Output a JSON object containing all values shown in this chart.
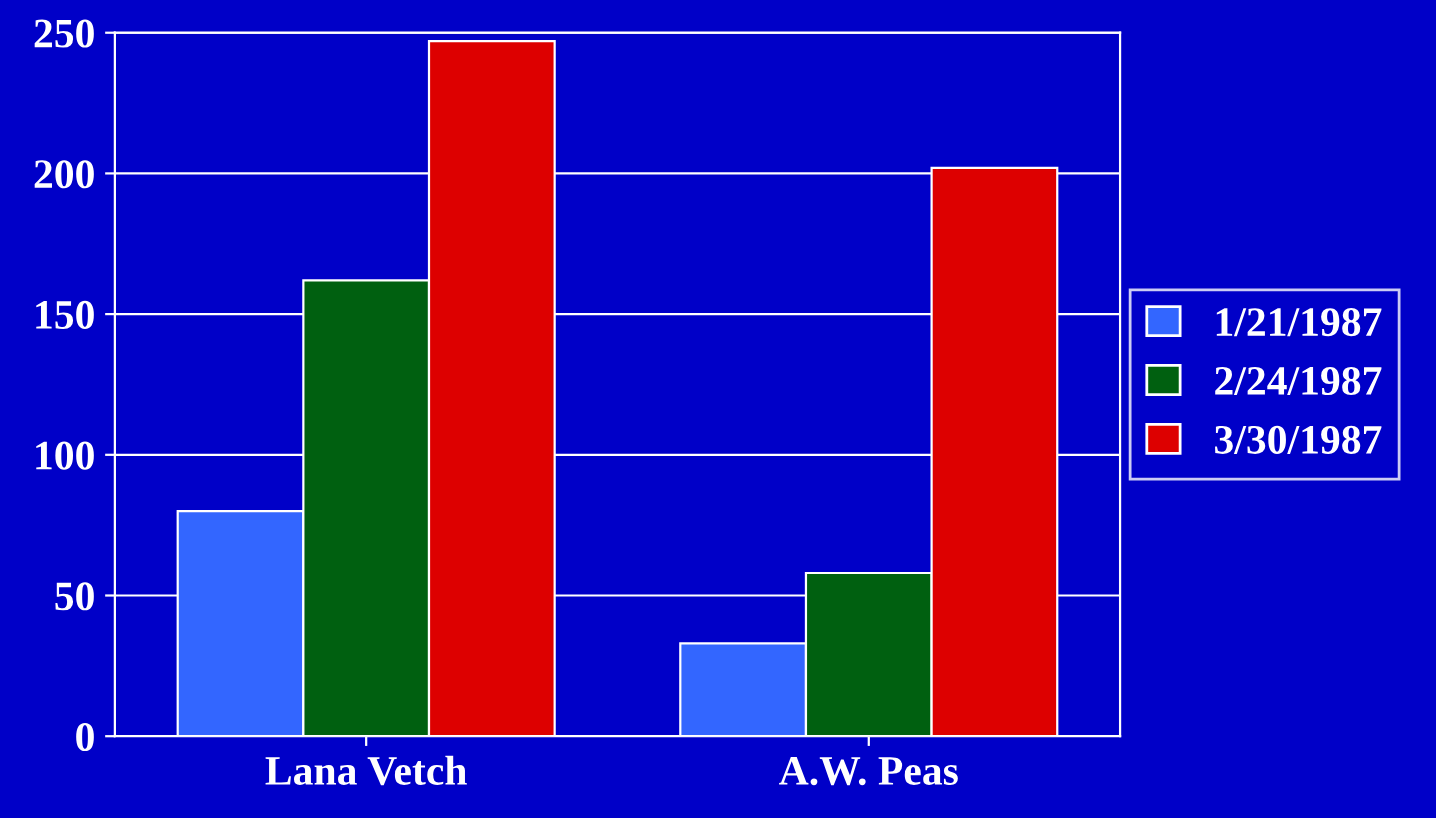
{
  "chart_data": {
    "type": "bar",
    "categories": [
      "Lana Vetch",
      "A.W. Peas"
    ],
    "series": [
      {
        "name": "1/21/1987",
        "color": "#3366ff",
        "values": [
          80,
          33
        ]
      },
      {
        "name": "2/24/1987",
        "color": "#006010",
        "values": [
          162,
          58
        ]
      },
      {
        "name": "3/30/1987",
        "color": "#dd0000",
        "values": [
          247,
          202
        ]
      }
    ],
    "ylim": [
      0,
      250
    ],
    "yticks": [
      0,
      50,
      100,
      150,
      200,
      250
    ],
    "grid": "y",
    "legend": "right"
  }
}
